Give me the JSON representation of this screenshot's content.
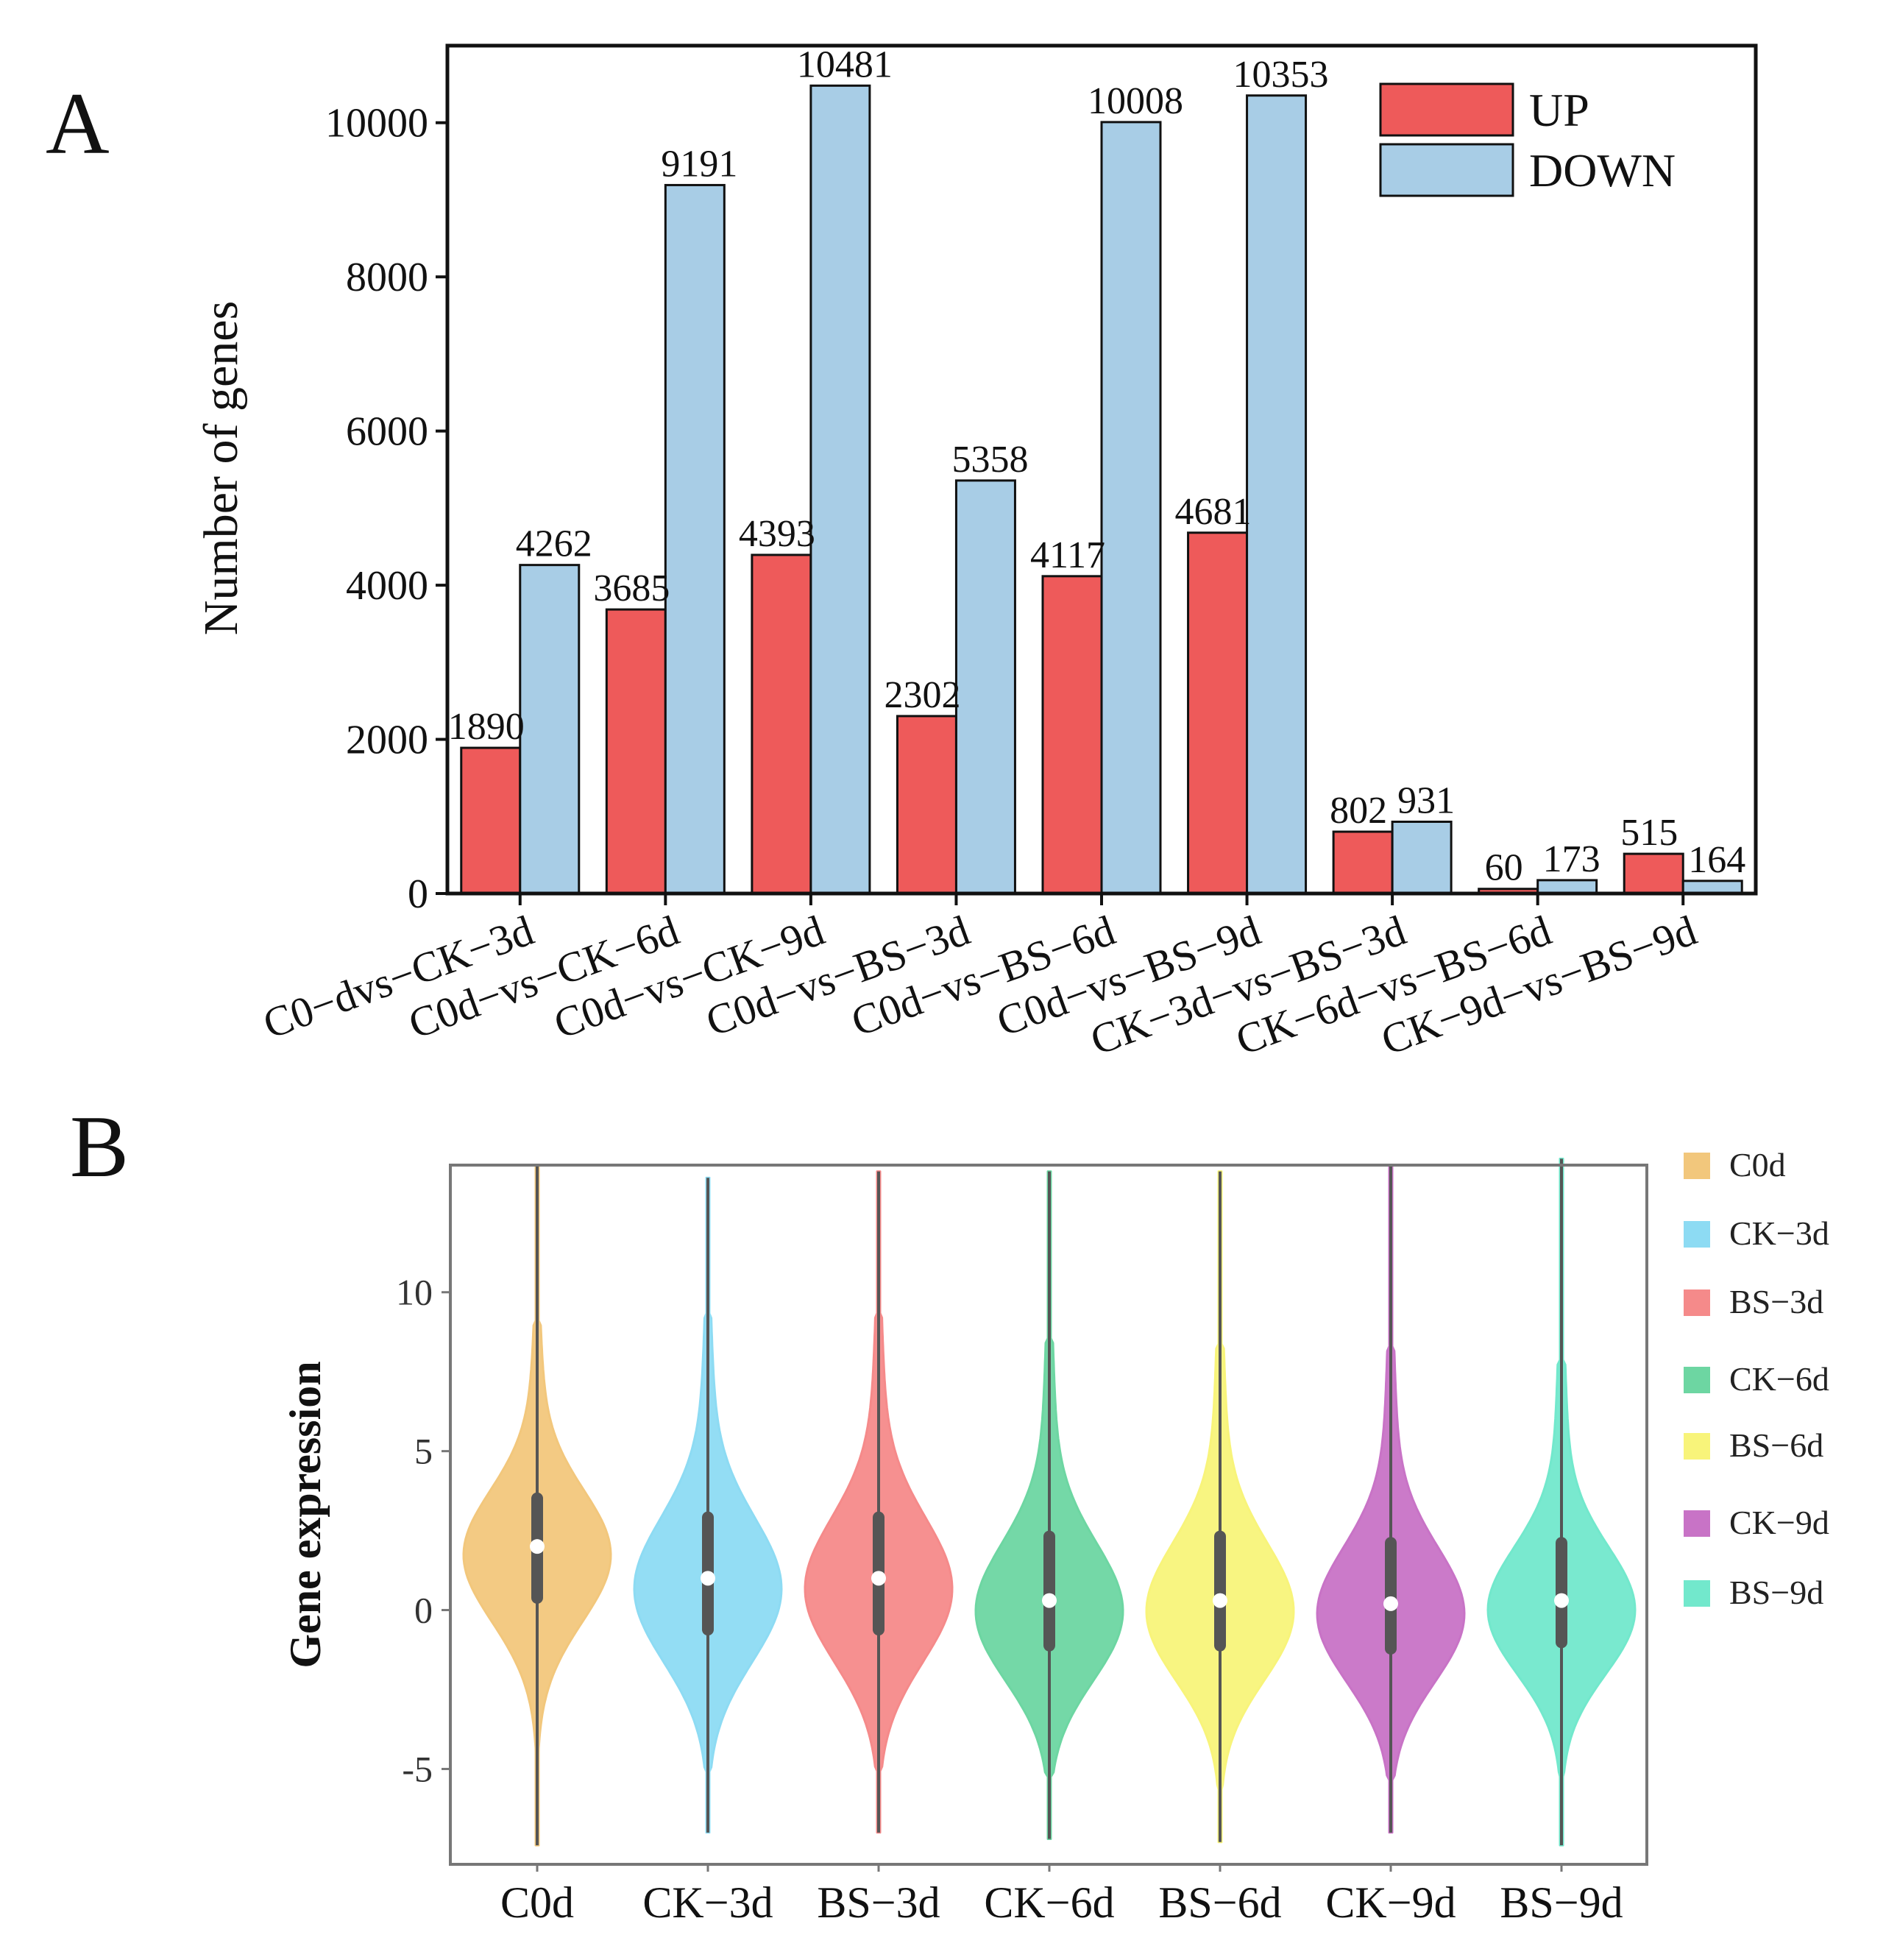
{
  "panel_a_label": "A",
  "panel_b_label": "B",
  "chart_data": [
    {
      "type": "bar",
      "title": "",
      "xlabel": "",
      "ylabel": "Number of genes",
      "ylim": [
        0,
        11000
      ],
      "yticks": [
        0,
        2000,
        4000,
        6000,
        8000,
        10000
      ],
      "grid": false,
      "legend_position": "top-right",
      "categories": [
        "C0−dvs−CK−3d",
        "C0d−vs−CK−6d",
        "C0d−vs−CK−9d",
        "C0d−vs−BS−3d",
        "C0d−vs−BS−6d",
        "C0d−vs−BS−9d",
        "CK−3d−vs−BS−3d",
        "CK−6d−vs−BS−6d",
        "CK−9d−vs−BS−9d"
      ],
      "series": [
        {
          "name": "UP",
          "color": "#ee5a5a",
          "values": [
            1890,
            3685,
            4393,
            2302,
            4117,
            4681,
            802,
            60,
            515
          ]
        },
        {
          "name": "DOWN",
          "color": "#a8cde6",
          "values": [
            4262,
            9191,
            10481,
            5358,
            10008,
            10353,
            931,
            173,
            164
          ]
        }
      ]
    },
    {
      "type": "violin",
      "title": "",
      "xlabel": "",
      "ylabel": "Gene expression",
      "ylim": [
        -8,
        14
      ],
      "yticks": [
        -5,
        0,
        5,
        10
      ],
      "grid": false,
      "legend_position": "right",
      "categories": [
        "C0d",
        "CK−3d",
        "BS−3d",
        "CK−6d",
        "BS−6d",
        "CK−9d",
        "BS−9d"
      ],
      "legend_labels": [
        "C0d",
        "CK−3d",
        "BS−3d",
        "CK−6d",
        "BS−6d",
        "CK−9d",
        "BS−9d"
      ],
      "colors": [
        "#f2c77c",
        "#8ddbf3",
        "#f58a8a",
        "#6dd6a2",
        "#f8f47a",
        "#c873c6",
        "#72e8cc"
      ],
      "median": [
        2.0,
        1.0,
        1.0,
        0.3,
        0.3,
        0.2,
        0.3
      ],
      "q1": [
        0.2,
        -0.8,
        -0.8,
        -1.3,
        -1.3,
        -1.4,
        -1.2
      ],
      "q3": [
        3.7,
        3.1,
        3.1,
        2.5,
        2.5,
        2.3,
        2.3
      ],
      "whisker_low": [
        -5.3,
        -5.0,
        -5.0,
        -5.2,
        -5.5,
        -5.3,
        -5.2
      ],
      "whisker_high": [
        9.1,
        9.3,
        9.3,
        8.5,
        8.3,
        8.2,
        7.8
      ],
      "min": [
        -7.4,
        -7.0,
        -7.0,
        -7.2,
        -7.3,
        -7.0,
        -7.4
      ],
      "max": [
        14.0,
        13.6,
        13.8,
        13.8,
        13.8,
        14.0,
        14.2
      ]
    }
  ]
}
